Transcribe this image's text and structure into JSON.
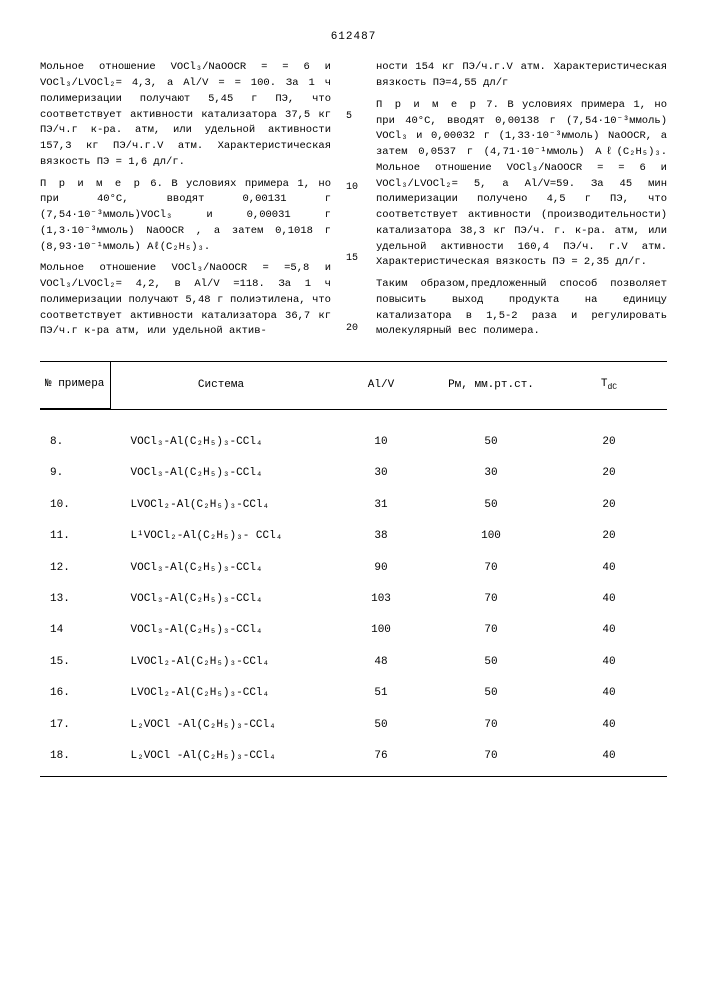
{
  "doc_number": "612487",
  "left_column": {
    "p1": "Мольное отношение VOCl₃/NaOOCR = = 6 и VOCl₃/LVOCl₂= 4,3, а Al/V = = 100. За 1 ч полимеризации получают 5,45 г ПЭ, что соответствует активности катализатора 37,5 кг ПЭ/ч.г к-ра. атм, или удельной активности 157,3 кг ПЭ/ч.г.V атм. Характеристическая вязкость ПЭ = 1,6 дл/г.",
    "p2_title": "П р и м е р",
    "p2_num": " 6.",
    "p2": " В условиях примера 1, но при 40°С, вводят 0,00131 г (7,54·10⁻³ммоль)VOCl₃ и 0,00031 г (1,3·10⁻³ммоль) NaOOCR , а затем 0,1018 г (8,93·10⁻¹ммоль) Aℓ(C₂H₅)₃.",
    "p3": "Мольное отношение VOCl₃/NaOOCR = =5,8 и VOCl₃/LVOCl₂= 4,2, в Al/V =118. За 1 ч полимеризации получают 5,48 г полиэтилена, что соответствует активности катализатора 36,7 кг ПЭ/ч.г к-ра атм, или удельной актив-"
  },
  "right_column": {
    "p1": "ности 154 кг ПЭ/ч.г.V атм. Характеристическая вязкость ПЭ=4,55 дл/г",
    "p2_title": "П р и м е р",
    "p2_num": " 7.",
    "p2": " В условиях примера 1, но при 40°С, вводят 0,00138 г (7,54·10⁻³ммоль) VOCl₃ и 0,00032 г (1,33·10⁻³ммоль) NaOOCR, а затем 0,0537 г (4,71·10⁻¹ммоль) Aℓ(C₂H₅)₃. Мольное отношение VOCl₃/NaOOCR = = 6 и VOCl₃/LVOCl₂= 5, а Al/V=59. За 45 мин полимеризации получено 4,5 г ПЭ, что соответствует активности (производительности) катализатора 38,3 кг ПЭ/ч. г. к-ра. атм, или удельной активности 160,4 ПЭ/ч. г.V атм. Характеристическая вязкость ПЭ = 2,35 дл/г.",
    "p3": "Таким образом,предложенный способ позволяет повысить выход продукта на единицу катализатора в 1,5-2 раза и регулировать молекулярный вес полимера."
  },
  "margin_nums": [
    "5",
    "10",
    "15",
    "20"
  ],
  "table": {
    "headers": {
      "num": "№ примера",
      "system": "Система",
      "alv": "Al/V",
      "pm": "Рм, мм.рт.ст.",
      "t": "Т"
    },
    "t_sub": "d",
    "t_unit": "С",
    "rows": [
      {
        "n": "8.",
        "sys": "VOCl₃-Al(C₂H₅)₃-CCl₄",
        "alv": "10",
        "pm": "50",
        "t": "20"
      },
      {
        "n": "9.",
        "sys": "VOCl₃-Al(C₂H₅)₃-CCl₄",
        "alv": "30",
        "pm": "30",
        "t": "20"
      },
      {
        "n": "10.",
        "sys": "LVOCl₂-Al(C₂H₅)₃-CCl₄",
        "alv": "31",
        "pm": "50",
        "t": "20"
      },
      {
        "n": "11.",
        "sys": "L¹VOCl₂-Al(C₂H₅)₃- CCl₄",
        "alv": "38",
        "pm": "100",
        "t": "20"
      },
      {
        "n": "12.",
        "sys": "VOCl₃-Al(C₂H₅)₃-CCl₄",
        "alv": "90",
        "pm": "70",
        "t": "40"
      },
      {
        "n": "13.",
        "sys": "VOCl₃-Al(C₂H₅)₃-CCl₄",
        "alv": "103",
        "pm": "70",
        "t": "40"
      },
      {
        "n": "14",
        "sys": "VOCl₃-Al(C₂H₅)₃-CCl₄",
        "alv": "100",
        "pm": "70",
        "t": "40"
      },
      {
        "n": "15.",
        "sys": "LVOCl₂-Al(C₂H₅)₃-CCl₄",
        "alv": "48",
        "pm": "50",
        "t": "40"
      },
      {
        "n": "16.",
        "sys": "LVOCl₂-Al(C₂H₅)₃-CCl₄",
        "alv": "51",
        "pm": "50",
        "t": "40"
      },
      {
        "n": "17.",
        "sys": "L₂VOCl -Al(C₂H₅)₃-CCl₄",
        "alv": "50",
        "pm": "70",
        "t": "40"
      },
      {
        "n": "18.",
        "sys": "L₂VOCl -Al(C₂H₅)₃-CCl₄",
        "alv": "76",
        "pm": "70",
        "t": "40"
      }
    ]
  }
}
